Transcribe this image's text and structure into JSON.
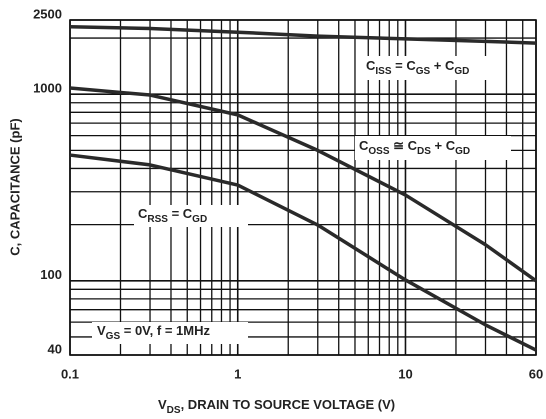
{
  "chart_data": {
    "type": "line",
    "xlabel": [
      "V",
      "DS",
      ", DRAIN TO SOURCE VOLTAGE (V)"
    ],
    "ylabel": "C, CAPACITANCE (pF)",
    "log_x": true,
    "log_y": true,
    "grid": true,
    "xlim": [
      0.1,
      60
    ],
    "ylim": [
      40,
      2500
    ],
    "xticks": [
      0.1,
      1,
      10,
      60
    ],
    "yticks": [
      40,
      100,
      1000,
      2500
    ],
    "x_minor_ticks": [
      0.2,
      0.3,
      0.4,
      0.5,
      0.6,
      0.7,
      0.8,
      0.9,
      2,
      3,
      4,
      5,
      6,
      7,
      8,
      9,
      20,
      30,
      40,
      50
    ],
    "y_minor_ticks": [
      50,
      60,
      70,
      80,
      90,
      200,
      300,
      400,
      500,
      600,
      700,
      800,
      900,
      2000
    ],
    "x": [
      0.1,
      0.3,
      1,
      3,
      10,
      30,
      60
    ],
    "series": [
      {
        "label": [
          "C",
          "ISS",
          " = C",
          "GS",
          " + C",
          "GD"
        ],
        "color": "#2a2a2a",
        "values": [
          2300,
          2250,
          2150,
          2050,
          1980,
          1920,
          1880
        ]
      },
      {
        "label": [
          "C",
          "OSS",
          " ≅  C",
          "DS",
          " + C",
          "GD"
        ],
        "color": "#2a2a2a",
        "values": [
          1080,
          990,
          775,
          500,
          288,
          156,
          100
        ]
      },
      {
        "label": [
          "C",
          "RSS",
          " = C",
          "GD"
        ],
        "color": "#2a2a2a",
        "values": [
          472,
          418,
          326,
          199,
          101,
          58,
          42.5
        ]
      }
    ],
    "annotation": [
      "V",
      "GS",
      " = 0V, f = 1MHz"
    ]
  }
}
